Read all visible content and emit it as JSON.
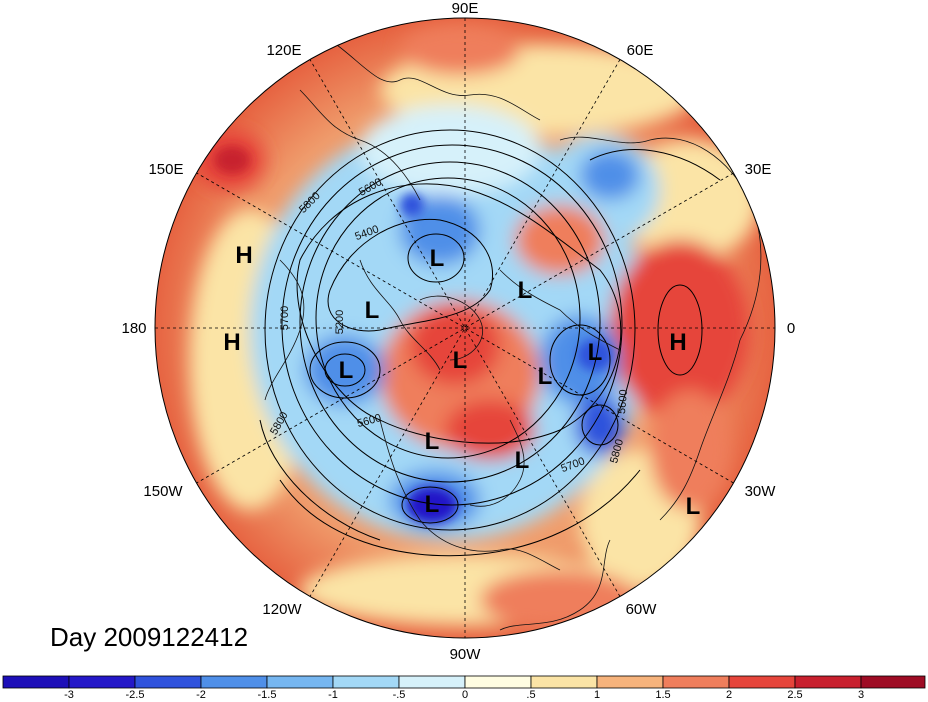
{
  "title": "Day 2009122412",
  "longitude_labels": [
    "90E",
    "60E",
    "30E",
    "0",
    "30W",
    "60W",
    "90W",
    "120W",
    "150W",
    "180",
    "150E",
    "120E"
  ],
  "contour_labels": [
    "5800",
    "5600",
    "5400",
    "5200",
    "5700",
    "5600",
    "5800",
    "5600",
    "5800",
    "5700"
  ],
  "pressure_systems": [
    "H",
    "H",
    "H",
    "L",
    "L",
    "L",
    "L",
    "L",
    "L",
    "L",
    "L",
    "L",
    "L",
    "L"
  ],
  "colorbar": {
    "labels": [
      "-3",
      "-2.5",
      "-2",
      "-1.5",
      "-1",
      "-.5",
      "0",
      ".5",
      "1",
      "1.5",
      "2",
      "2.5",
      "3"
    ],
    "colors": [
      "#2418c8",
      "#2f52dc",
      "#4f8fe8",
      "#76b6f0",
      "#a3d8f6",
      "#d6f1fa",
      "#fffde2",
      "#fbe4a6",
      "#f6b37c",
      "#ef7e5c",
      "#e6453b",
      "#c8202e",
      "#9e0c24"
    ]
  }
}
